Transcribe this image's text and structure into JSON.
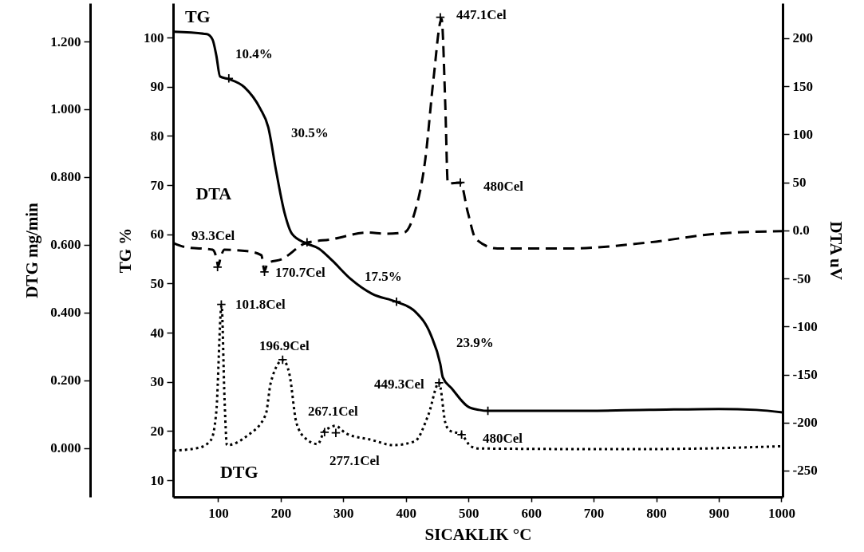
{
  "chart_data": {
    "type": "line",
    "xlabel": "SICAKLIK °C",
    "ylabel": "TG %",
    "y2label": "DTA uV",
    "y3label": "DTG mg/min",
    "xlim": [
      28,
      1002
    ],
    "xticks": [
      100,
      200,
      300,
      400,
      500,
      600,
      700,
      800,
      900,
      1000
    ],
    "ylim": [
      6.6,
      107
    ],
    "yticks": [
      10,
      20,
      30,
      40,
      50,
      60,
      70,
      80,
      90,
      100
    ],
    "y2lim": [
      -277.4,
      236.5
    ],
    "y2ticks": [
      -250,
      -200,
      -150,
      -100,
      -50,
      {
        "value": 0,
        "label": "0.0"
      },
      50,
      100,
      150,
      200
    ],
    "y3lim": [
      -0.144,
      1.313
    ],
    "y3ticks": [
      {
        "value": 0,
        "label": "0.000"
      },
      {
        "value": 0.2,
        "label": "0.200"
      },
      {
        "value": 0.4,
        "label": "0.400"
      },
      {
        "value": 0.6,
        "label": "0.600"
      },
      {
        "value": 0.8,
        "label": "0.800"
      },
      {
        "value": 1.0,
        "label": "1.000"
      },
      {
        "value": 1.2,
        "label": "1.200"
      }
    ],
    "grid": false,
    "series": [
      {
        "name": "TG",
        "axis": "y",
        "color": "#000000",
        "line_style": "solid",
        "x": [
          29,
          82,
          91,
          97,
          103,
          116,
          142,
          167,
          180,
          193,
          206,
          218,
          240,
          261,
          282,
          312,
          346,
          384,
          414,
          440,
          455,
          459,
          473,
          500,
          517,
          531,
          661,
          789,
          900,
          960,
          1002
        ],
        "values": [
          101.2,
          100.7,
          99.6,
          96.4,
          92.1,
          91.6,
          89.9,
          85.6,
          81.8,
          72.6,
          64.4,
          60.1,
          58.2,
          57.1,
          54.7,
          50.9,
          47.9,
          46.3,
          44.4,
          39.5,
          33.6,
          30.9,
          28.7,
          24.9,
          24.3,
          24.1,
          24.1,
          24.3,
          24.5,
          24.3,
          23.8
        ]
      },
      {
        "name": "DTA",
        "axis": "y2",
        "color": "#000000",
        "line_style": "dashed",
        "x": [
          29,
          48,
          91,
          97,
          100,
          104,
          110,
          146,
          169,
          174,
          179,
          201,
          240,
          282,
          338,
          368,
          397,
          414,
          431,
          444,
          457,
          463,
          467,
          487,
          499,
          512,
          546,
          661,
          789,
          896,
          1002
        ],
        "values": [
          -13.2,
          -17.4,
          -20.1,
          -28,
          -37,
          -28,
          -20.1,
          -21.5,
          -25.7,
          -42,
          -34,
          -30.1,
          -13.2,
          -9.1,
          -2.2,
          -3.5,
          -2.2,
          18.6,
          74,
          157,
          220,
          129.4,
          49,
          49.7,
          18.6,
          -9.1,
          -18.8,
          -18.8,
          -12.4,
          -3.5,
          -0.7
        ]
      },
      {
        "name": "DTG",
        "axis": "y3",
        "color": "#000000",
        "line_style": "dotted",
        "x": [
          29,
          69,
          88.5,
          97,
          105.5,
          110,
          114,
          146,
          176,
          184,
          203.5,
          214,
          225,
          240,
          259,
          270,
          278,
          287,
          304,
          346,
          380,
          414,
          436,
          453,
          463,
          470,
          489,
          504,
          517,
          747,
          874,
          1002
        ],
        "values": [
          -0.007,
          0.001,
          0.024,
          0.107,
          0.421,
          0.154,
          0.009,
          0.036,
          0.099,
          0.193,
          0.26,
          0.217,
          0.075,
          0.028,
          0.012,
          0.052,
          0.06,
          0.066,
          0.044,
          0.024,
          0.009,
          0.02,
          0.099,
          0.193,
          0.075,
          0.052,
          0.04,
          0.005,
          -0.001,
          -0.003,
          -0.001,
          0.006
        ]
      },
      {
        "type": "scatter",
        "axis": "y",
        "color": "#000000",
        "marker": "cross",
        "x": [
          117,
          242,
          385,
          531
        ],
        "values": [
          91.7,
          58.4,
          46.3,
          24.1
        ]
      },
      {
        "type": "scatter",
        "axis": "y2",
        "color": "#000000",
        "marker": "cross",
        "x": [
          99,
          174,
          455,
          487
        ],
        "values": [
          -38.2,
          -43.1,
          221.8,
          49.9
        ]
      },
      {
        "type": "scatter",
        "axis": "y3",
        "color": "#000000",
        "marker": "cross",
        "x": [
          105,
          203,
          270,
          288,
          453,
          489
        ],
        "values": [
          0.424,
          0.261,
          0.047,
          0.045,
          0.193,
          0.04
        ]
      }
    ],
    "annotations": [
      "10.4%",
      "30.5%",
      "17.5%",
      "23.9%",
      "93.3Cel",
      "170.7Cel",
      "101.8Cel",
      "196.9Cel",
      "267.1Cel",
      "277.1Cel",
      "449.3Cel",
      "447.1Cel",
      "480Cel",
      "480Cel"
    ]
  }
}
